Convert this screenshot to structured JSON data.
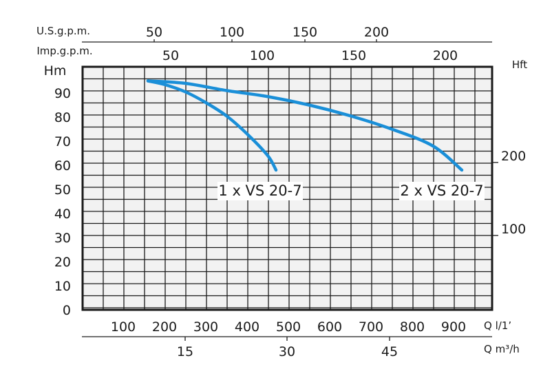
{
  "chart_data": {
    "type": "line",
    "x_unit_top_us": "U.S.g.p.m.",
    "x_unit_top_imp": "Imp.g.p.m.",
    "y_unit_left": "Hm",
    "y_unit_right": "Hft",
    "x_unit_bottom_1": "Q l/1’",
    "x_unit_bottom_2": "Q m³/h",
    "xlim_lpm": [
      0,
      1000
    ],
    "ylim_m": [
      0,
      100
    ],
    "y_ticks_m": [
      "0",
      "10",
      "20",
      "30",
      "40",
      "50",
      "60",
      "70",
      "80",
      "90"
    ],
    "x_ticks_lpm": [
      "100",
      "200",
      "300",
      "400",
      "500",
      "600",
      "700",
      "800",
      "900"
    ],
    "x_ticks_m3h": [
      "15",
      "30",
      "45"
    ],
    "x_ticks_usgpm": [
      "50",
      "100",
      "150",
      "200"
    ],
    "x_ticks_impgpm": [
      "50",
      "100",
      "150",
      "200"
    ],
    "y_ticks_ft": [
      "100",
      "200"
    ],
    "grid": true,
    "series": [
      {
        "name": "1 x VS 20-7",
        "x_lpm": [
          160,
          200,
          250,
          300,
          350,
          400,
          450,
          470
        ],
        "y_m": [
          95,
          93.5,
          90.5,
          86,
          80.5,
          73,
          64,
          58
        ]
      },
      {
        "name": "2 x VS 20-7",
        "x_lpm": [
          160,
          250,
          350,
          450,
          550,
          650,
          750,
          850,
          920
        ],
        "y_m": [
          95,
          94,
          91,
          88.5,
          85,
          80.5,
          75,
          68,
          58
        ]
      }
    ],
    "line_color": "#1a8fd8"
  }
}
